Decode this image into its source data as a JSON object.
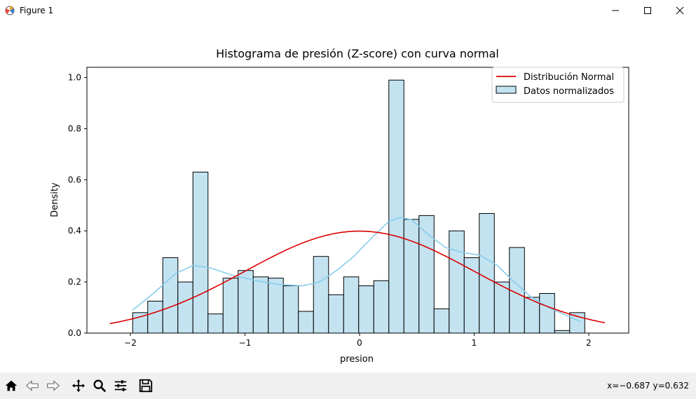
{
  "window": {
    "title": "Figure 1",
    "minimize_glyph": "—",
    "maximize_glyph": "☐",
    "close_glyph": "✕"
  },
  "toolbar": {
    "tools": [
      "home-icon",
      "back-icon",
      "forward-icon",
      "pan-icon",
      "zoom-icon",
      "configure-subplots-icon",
      "save-icon"
    ],
    "coords_text": "x=−0.687 y=0.632"
  },
  "colors": {
    "bar_fill": "#c3e3f1",
    "bar_edge": "#000000",
    "kde_line": "#87ceeb",
    "normal_line": "#dd0000"
  },
  "chart_data": {
    "type": "bar",
    "title": "Histograma de presión (Z-score) con curva normal",
    "xlabel": "presion",
    "ylabel": "Density",
    "xlim": [
      -2.25,
      2.35
    ],
    "ylim": [
      0,
      1.04
    ],
    "xticks": [
      -2,
      -1,
      0,
      1,
      2
    ],
    "xtick_labels": [
      "−2",
      "−1",
      "0",
      "1",
      "2"
    ],
    "yticks": [
      0.0,
      0.2,
      0.4,
      0.6,
      0.8,
      1.0
    ],
    "ytick_labels": [
      "0.0",
      "0.2",
      "0.4",
      "0.6",
      "0.8",
      "1.0"
    ],
    "bin_start": -1.98,
    "bin_width": 0.1315,
    "values": [
      0.08,
      0.125,
      0.295,
      0.2,
      0.63,
      0.075,
      0.215,
      0.245,
      0.22,
      0.215,
      0.185,
      0.085,
      0.3,
      0.15,
      0.22,
      0.185,
      0.205,
      0.99,
      0.445,
      0.46,
      0.095,
      0.4,
      0.295,
      0.468,
      0.2,
      0.335,
      0.14,
      0.155,
      0.01,
      0.08
    ],
    "normal_curve": {
      "mean": 0,
      "std": 1,
      "x_from": -2.18,
      "x_to": 2.14
    },
    "kde_curve": {
      "x": [
        -1.98,
        -1.8,
        -1.6,
        -1.45,
        -1.3,
        -1.1,
        -0.9,
        -0.7,
        -0.5,
        -0.35,
        -0.2,
        -0.05,
        0.1,
        0.25,
        0.35,
        0.45,
        0.6,
        0.75,
        0.9,
        1.05,
        1.2,
        1.35,
        1.5,
        1.65,
        1.8,
        1.93
      ],
      "y": [
        0.09,
        0.155,
        0.235,
        0.265,
        0.255,
        0.225,
        0.205,
        0.19,
        0.185,
        0.2,
        0.245,
        0.3,
        0.37,
        0.435,
        0.452,
        0.445,
        0.385,
        0.335,
        0.315,
        0.305,
        0.265,
        0.2,
        0.14,
        0.1,
        0.07,
        0.045
      ]
    },
    "legend": {
      "placement": "top-right",
      "entries": [
        "Distribución Normal",
        "Datos normalizados"
      ]
    }
  }
}
